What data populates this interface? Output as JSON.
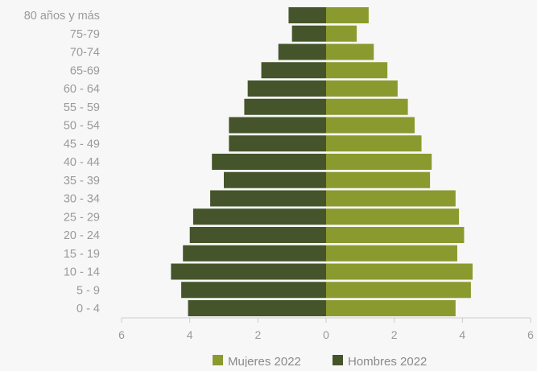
{
  "colors": {
    "women": "#8a9a2e",
    "men": "#45542a",
    "tick_text": "#9a9a9a",
    "axis_line": "#cccccc",
    "background": "#f7f7f7"
  },
  "chart_data": {
    "type": "bar",
    "orientation": "horizontal",
    "layout": "population-pyramid",
    "categories": [
      "80 años y más",
      "75-79",
      "70-74",
      "65-69",
      "60 - 64",
      "55 - 59",
      "50 - 54",
      "45 - 49",
      "40 - 44",
      "35 - 39",
      "30 - 34",
      "25 - 29",
      "20 - 24",
      "15 - 19",
      "10 - 14",
      "5 -  9",
      "0 - 4"
    ],
    "series": [
      {
        "name": "Mujeres 2022",
        "side": "right",
        "values": [
          1.25,
          0.9,
          1.4,
          1.8,
          2.1,
          2.4,
          2.6,
          2.8,
          3.1,
          3.05,
          3.8,
          3.9,
          4.05,
          3.85,
          4.3,
          4.25,
          3.8
        ]
      },
      {
        "name": "Hombres 2022",
        "side": "left",
        "values": [
          1.1,
          1.0,
          1.4,
          1.9,
          2.3,
          2.4,
          2.85,
          2.85,
          3.35,
          3.0,
          3.4,
          3.9,
          4.0,
          4.2,
          4.55,
          4.25,
          4.05
        ]
      }
    ],
    "xlim": [
      -6,
      6
    ],
    "x_ticks": [
      -6,
      -4,
      -2,
      0,
      2,
      4,
      6
    ],
    "x_tick_labels": [
      "6",
      "4",
      "2",
      "0",
      "2",
      "4",
      "6"
    ],
    "legend_position": "bottom",
    "grid": false
  }
}
